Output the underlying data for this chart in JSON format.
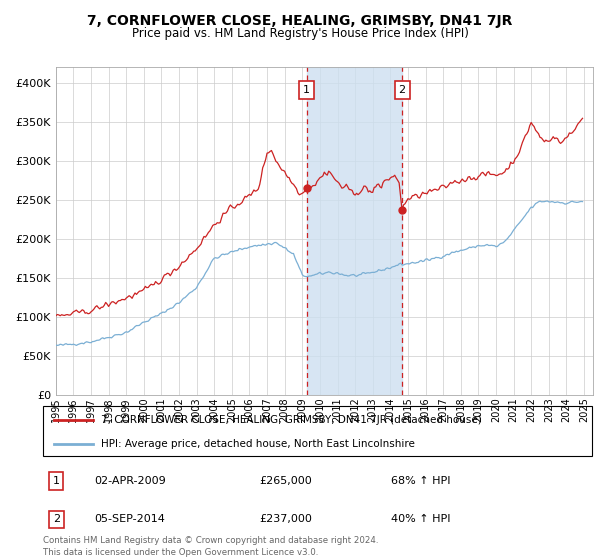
{
  "title": "7, CORNFLOWER CLOSE, HEALING, GRIMSBY, DN41 7JR",
  "subtitle": "Price paid vs. HM Land Registry's House Price Index (HPI)",
  "ylim": [
    0,
    420000
  ],
  "yticks": [
    0,
    50000,
    100000,
    150000,
    200000,
    250000,
    300000,
    350000,
    400000
  ],
  "xlim_start": 1995.0,
  "xlim_end": 2025.5,
  "hpi_color": "#7bafd4",
  "price_color": "#cc2222",
  "background_color": "#ffffff",
  "grid_color": "#cccccc",
  "sale1_x": 2009.25,
  "sale1_y": 265000,
  "sale1_label": "02-APR-2009",
  "sale1_price": "£265,000",
  "sale1_hpi": "68% ↑ HPI",
  "sale2_x": 2014.67,
  "sale2_y": 237000,
  "sale2_label": "05-SEP-2014",
  "sale2_price": "£237,000",
  "sale2_hpi": "40% ↑ HPI",
  "legend_line1": "7, CORNFLOWER CLOSE, HEALING, GRIMSBY, DN41 7JR (detached house)",
  "legend_line2": "HPI: Average price, detached house, North East Lincolnshire",
  "footnote": "Contains HM Land Registry data © Crown copyright and database right 2024.\nThis data is licensed under the Open Government Licence v3.0."
}
